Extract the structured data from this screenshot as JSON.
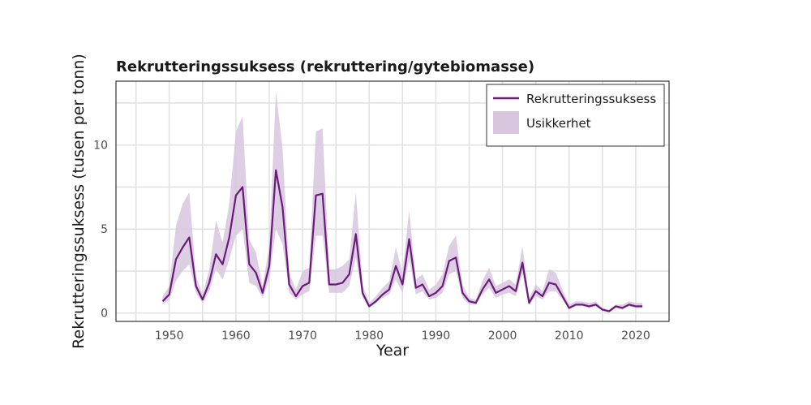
{
  "chart_data": {
    "type": "line",
    "title": "Rekrutteringssuksess (rekruttering/gytebiomasse)",
    "xlabel": "Year",
    "ylabel": "Rekrutteringssuksess (tusen per tonn)",
    "xlim": [
      1942,
      2025
    ],
    "ylim": [
      -0.5,
      13.8
    ],
    "x_ticks": [
      1950,
      1960,
      1970,
      1980,
      1990,
      2000,
      2010,
      2020
    ],
    "y_ticks": [
      0,
      5,
      10
    ],
    "grid": true,
    "legend_position": "top-right",
    "x": [
      1949,
      1950,
      1951,
      1952,
      1953,
      1954,
      1955,
      1956,
      1957,
      1958,
      1959,
      1960,
      1961,
      1962,
      1963,
      1964,
      1965,
      1966,
      1967,
      1968,
      1969,
      1970,
      1971,
      1972,
      1973,
      1974,
      1975,
      1976,
      1977,
      1978,
      1979,
      1980,
      1981,
      1982,
      1983,
      1984,
      1985,
      1986,
      1987,
      1988,
      1989,
      1990,
      1991,
      1992,
      1993,
      1994,
      1995,
      1996,
      1997,
      1998,
      1999,
      2000,
      2001,
      2002,
      2003,
      2004,
      2005,
      2006,
      2007,
      2008,
      2009,
      2010,
      2011,
      2012,
      2013,
      2014,
      2015,
      2016,
      2017,
      2018,
      2019,
      2020,
      2021
    ],
    "series": [
      {
        "name": "Rekrutteringssuksess",
        "values": [
          0.7,
          1.1,
          3.2,
          3.9,
          4.5,
          1.6,
          0.8,
          1.8,
          3.5,
          2.9,
          4.5,
          7.0,
          7.5,
          2.9,
          2.4,
          1.2,
          2.8,
          8.5,
          6.3,
          1.7,
          1.0,
          1.6,
          1.8,
          7.0,
          7.1,
          1.7,
          1.7,
          1.8,
          2.3,
          4.7,
          1.2,
          0.4,
          0.7,
          1.1,
          1.4,
          2.8,
          1.7,
          4.4,
          1.5,
          1.7,
          1.0,
          1.2,
          1.6,
          3.1,
          3.3,
          1.2,
          0.7,
          0.6,
          1.4,
          2.0,
          1.2,
          1.4,
          1.6,
          1.3,
          3.0,
          0.6,
          1.3,
          1.0,
          1.8,
          1.7,
          1.0,
          0.3,
          0.5,
          0.5,
          0.4,
          0.5,
          0.2,
          0.1,
          0.4,
          0.3,
          0.5,
          0.4,
          0.4
        ]
      },
      {
        "name": "Usikkerhet",
        "lower": [
          0.5,
          0.8,
          1.9,
          2.5,
          2.9,
          1.2,
          0.6,
          1.3,
          2.6,
          2.0,
          3.2,
          4.6,
          5.0,
          1.8,
          1.6,
          0.9,
          2.0,
          5.0,
          4.1,
          1.2,
          0.8,
          1.1,
          1.3,
          4.6,
          4.6,
          1.2,
          1.2,
          1.2,
          1.6,
          3.3,
          0.9,
          0.3,
          0.6,
          0.9,
          1.1,
          2.0,
          1.2,
          3.2,
          1.1,
          1.3,
          0.8,
          0.9,
          1.2,
          2.3,
          2.5,
          0.9,
          0.5,
          0.5,
          1.1,
          1.5,
          0.9,
          1.1,
          1.2,
          1.0,
          2.3,
          0.5,
          1.0,
          0.8,
          1.3,
          1.3,
          0.8,
          0.2,
          0.4,
          0.4,
          0.3,
          0.4,
          0.15,
          0.05,
          0.3,
          0.2,
          0.4,
          0.3,
          0.3
        ],
        "upper": [
          1.0,
          1.6,
          5.2,
          6.5,
          7.2,
          2.2,
          1.1,
          2.6,
          5.5,
          4.2,
          6.5,
          10.8,
          11.7,
          4.4,
          3.6,
          1.6,
          4.0,
          13.2,
          9.8,
          2.4,
          1.4,
          2.5,
          2.7,
          10.8,
          11.0,
          2.6,
          2.6,
          2.8,
          3.2,
          7.2,
          1.7,
          0.6,
          1.0,
          1.5,
          1.9,
          3.9,
          2.4,
          6.1,
          2.0,
          2.3,
          1.4,
          1.7,
          2.3,
          4.0,
          4.6,
          1.7,
          0.9,
          0.8,
          1.9,
          2.7,
          1.6,
          1.8,
          2.0,
          1.7,
          4.0,
          0.9,
          1.7,
          1.3,
          2.6,
          2.4,
          1.4,
          0.5,
          0.7,
          0.7,
          0.6,
          0.7,
          0.3,
          0.2,
          0.5,
          0.5,
          0.7,
          0.6,
          0.6
        ]
      }
    ]
  },
  "colors": {
    "line": "#6a1b7a",
    "band": "#d8c6de",
    "grid": "#e2e2e2",
    "frame": "#333333"
  }
}
